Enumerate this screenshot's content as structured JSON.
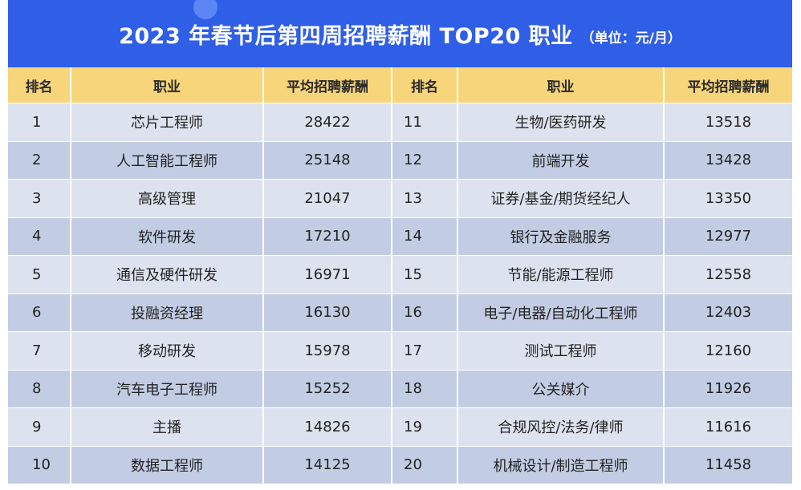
{
  "title": "2023 年春节后第四周招聘薪酬 TOP20 职业",
  "unit": "（单位：元/月）",
  "headers": {
    "rank": "排名",
    "job": "职业",
    "salary": "平均招聘薪酬"
  },
  "left": [
    {
      "rank": "1",
      "job": "芯片工程师",
      "salary": "28422"
    },
    {
      "rank": "2",
      "job": "人工智能工程师",
      "salary": "25148"
    },
    {
      "rank": "3",
      "job": "高级管理",
      "salary": "21047"
    },
    {
      "rank": "4",
      "job": "软件研发",
      "salary": "17210"
    },
    {
      "rank": "5",
      "job": "通信及硬件研发",
      "salary": "16971"
    },
    {
      "rank": "6",
      "job": "投融资经理",
      "salary": "16130"
    },
    {
      "rank": "7",
      "job": "移动研发",
      "salary": "15978"
    },
    {
      "rank": "8",
      "job": "汽车电子工程师",
      "salary": "15252"
    },
    {
      "rank": "9",
      "job": "主播",
      "salary": "14826"
    },
    {
      "rank": "10",
      "job": "数据工程师",
      "salary": "14125"
    }
  ],
  "right": [
    {
      "rank": "11",
      "job": "生物/医药研发",
      "salary": "13518"
    },
    {
      "rank": "12",
      "job": "前端开发",
      "salary": "13428"
    },
    {
      "rank": "13",
      "job": "证券/基金/期货经纪人",
      "salary": "13350"
    },
    {
      "rank": "14",
      "job": "银行及金融服务",
      "salary": "12977"
    },
    {
      "rank": "15",
      "job": "节能/能源工程师",
      "salary": "12558"
    },
    {
      "rank": "16",
      "job": "电子/电器/自动化工程师",
      "salary": "12403"
    },
    {
      "rank": "17",
      "job": "测试工程师",
      "salary": "12160"
    },
    {
      "rank": "18",
      "job": "公关媒介",
      "salary": "11926"
    },
    {
      "rank": "19",
      "job": "合规风控/法务/律师",
      "salary": "11616"
    },
    {
      "rank": "20",
      "job": "机械设计/制造工程师",
      "salary": "11458"
    }
  ],
  "colors": {
    "title_bg": "#2f5fe6",
    "header_bg": "#f7d57a",
    "row_light": "#dde3ee",
    "row_dark": "#c2cde3"
  }
}
